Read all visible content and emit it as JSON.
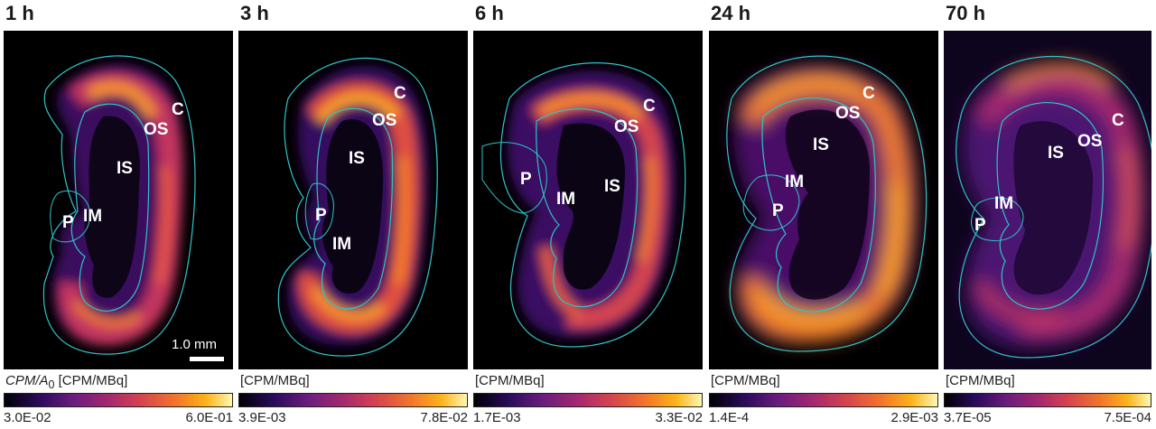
{
  "colormap": [
    "#000004",
    "#2a0b5a",
    "#6a1c7f",
    "#a3286f",
    "#d6454d",
    "#f2762a",
    "#fcb41a",
    "#fcfdbf"
  ],
  "outline_color": "#2ec4c8",
  "panels": [
    {
      "title": "1 h",
      "unit_prefix": "CPM/A",
      "unit_sub": "0",
      "unit": " [CPM/MBq]",
      "min": "3.0E-02",
      "max": "6.0E-01",
      "labels": {
        "C": "C",
        "OS": "OS",
        "IS": "IS",
        "IM": "IM",
        "P": "P"
      },
      "scale": "1.0 mm"
    },
    {
      "title": "3 h",
      "unit": "[CPM/MBq]",
      "min": "3.9E-03",
      "max": "7.8E-02",
      "labels": {
        "C": "C",
        "OS": "OS",
        "IS": "IS",
        "IM": "IM",
        "P": "P"
      }
    },
    {
      "title": "6 h",
      "unit": "[CPM/MBq]",
      "min": "1.7E-03",
      "max": "3.3E-02",
      "labels": {
        "C": "C",
        "OS": "OS",
        "IS": "IS",
        "IM": "IM",
        "P": "P"
      }
    },
    {
      "title": "24 h",
      "unit": "[CPM/MBq]",
      "min": "1.4E-4",
      "max": "2.9E-03",
      "labels": {
        "C": "C",
        "OS": "OS",
        "IS": "IS",
        "IM": "IM",
        "P": "P"
      }
    },
    {
      "title": "70 h",
      "unit": "[CPM/MBq]",
      "min": "3.7E-05",
      "max": "7.5E-04",
      "labels": {
        "C": "C",
        "OS": "OS",
        "IS": "IS",
        "IM": "IM",
        "P": "P"
      }
    }
  ]
}
